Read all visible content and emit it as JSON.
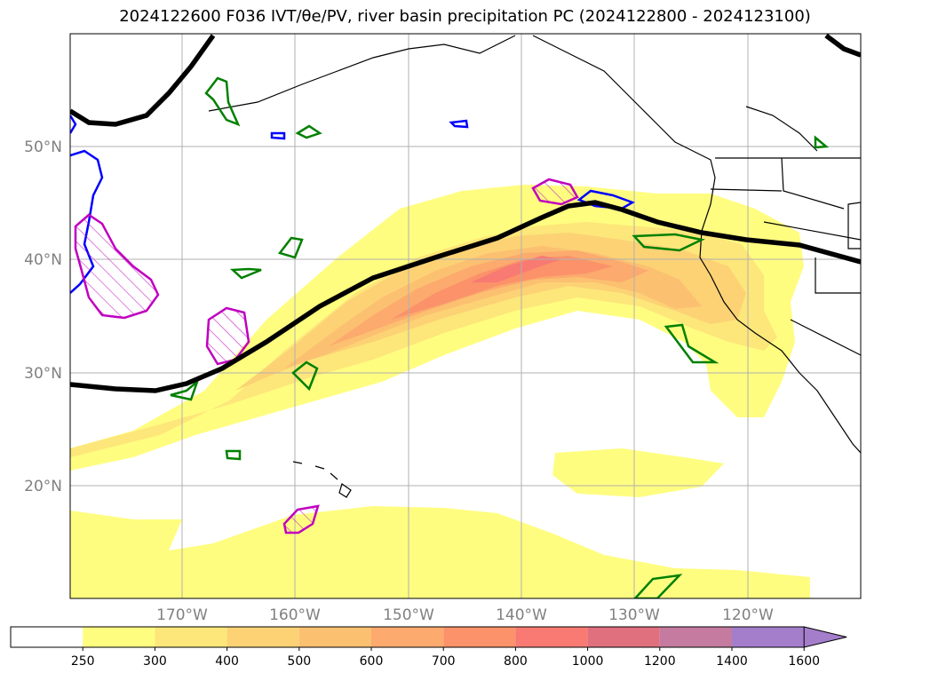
{
  "title": "2024122600 F036 IVT/θe/PV, river basin precipitation PC (2024122800 - 2024123100)",
  "lat_labels": [
    "50°N",
    "40°N",
    "30°N",
    "20°N"
  ],
  "lon_labels": [
    "170°W",
    "160°W",
    "150°W",
    "140°W",
    "130°W",
    "120°W"
  ],
  "colorbar": {
    "levels": [
      "250",
      "300",
      "400",
      "500",
      "600",
      "700",
      "800",
      "1000",
      "1200",
      "1400",
      "1600"
    ],
    "colors": [
      "#ffffff",
      "#fffd80",
      "#fde67a",
      "#fcd275",
      "#fcc071",
      "#fcaa6e",
      "#fb926a",
      "#f87a72",
      "#e0707e",
      "#c47b9f",
      "#a47ecb"
    ],
    "extend": "max"
  },
  "colors": {
    "theta_e_line": "#000000",
    "pv_green": "#008000",
    "pv_blue": "#0000ff",
    "pv_magenta": "#c000c0",
    "grid": "#b0b0b0"
  }
}
